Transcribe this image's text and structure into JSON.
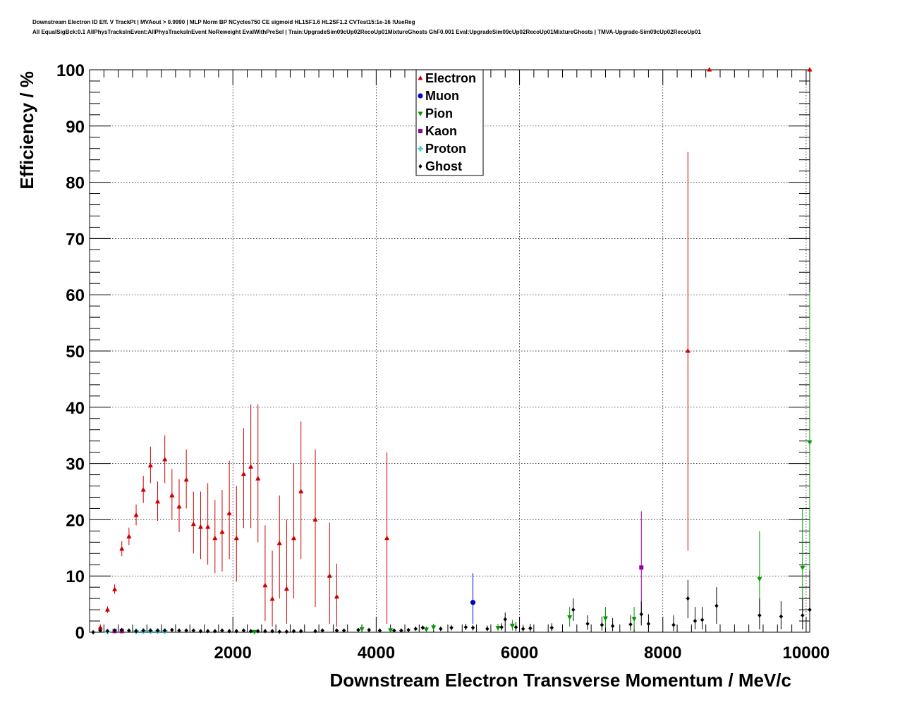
{
  "chart_data": {
    "type": "scatter",
    "title_line1": "Downstream Electron ID Eff. V TrackPt | MVAout > 0.9990 | MLP Norm BP NCycles750 CE sigmoid HL1SF1.6 HL2SF1.2 CVTest15:1e-16 !UseReg",
    "title_line2": "All EqualSigBck:0.1 AllPhysTracksInEvent:AllPhysTracksInEvent NoReweight EvalWithPreSel | Train:UpgradeSim09cUp02RecoUp01MixtureGhosts GhF0.001 Eval:UpgradeSim09cUp02RecoUp01MixtureGhosts | TMVA-Upgrade-Sim09cUp02RecoUp01",
    "xlabel": "Downstream Electron Transverse Momentum / MeV/c",
    "ylabel": "Efficiency / %",
    "xlim": [
      0,
      10050
    ],
    "ylim": [
      0,
      100
    ],
    "xticks": [
      2000,
      4000,
      6000,
      8000,
      10000
    ],
    "xtick_labels": [
      "2000",
      "4000",
      "6000",
      "8000",
      "10000"
    ],
    "yticks": [
      0,
      10,
      20,
      30,
      40,
      50,
      60,
      70,
      80,
      90,
      100
    ],
    "ytick_labels": [
      "0",
      "10",
      "20",
      "30",
      "40",
      "50",
      "60",
      "70",
      "80",
      "90",
      "100"
    ],
    "grid": true,
    "legend_position": "top-center",
    "series": [
      {
        "name": "Electron",
        "color": "#cc0000",
        "marker": "triangle-up",
        "points": [
          {
            "x": 150,
            "y": 0.8,
            "lo": 0.3,
            "hi": 1.4
          },
          {
            "x": 250,
            "y": 4.0,
            "lo": 3.4,
            "hi": 4.6
          },
          {
            "x": 350,
            "y": 7.6,
            "lo": 6.8,
            "hi": 8.5
          },
          {
            "x": 450,
            "y": 14.8,
            "lo": 13.5,
            "hi": 16.2
          },
          {
            "x": 550,
            "y": 17.0,
            "lo": 15.5,
            "hi": 18.6
          },
          {
            "x": 650,
            "y": 20.8,
            "lo": 19.0,
            "hi": 22.7
          },
          {
            "x": 750,
            "y": 25.3,
            "lo": 23.0,
            "hi": 27.8
          },
          {
            "x": 850,
            "y": 29.6,
            "lo": 26.5,
            "hi": 33.0
          },
          {
            "x": 950,
            "y": 23.2,
            "lo": 19.8,
            "hi": 26.8
          },
          {
            "x": 1050,
            "y": 30.7,
            "lo": 26.5,
            "hi": 35.0
          },
          {
            "x": 1150,
            "y": 24.3,
            "lo": 20.0,
            "hi": 29.0
          },
          {
            "x": 1250,
            "y": 22.3,
            "lo": 17.8,
            "hi": 27.2
          },
          {
            "x": 1350,
            "y": 27.1,
            "lo": 22.0,
            "hi": 32.5
          },
          {
            "x": 1450,
            "y": 19.2,
            "lo": 14.0,
            "hi": 25.0
          },
          {
            "x": 1550,
            "y": 18.7,
            "lo": 13.0,
            "hi": 25.0
          },
          {
            "x": 1650,
            "y": 18.7,
            "lo": 12.0,
            "hi": 26.5
          },
          {
            "x": 1750,
            "y": 16.7,
            "lo": 10.5,
            "hi": 23.5
          },
          {
            "x": 1850,
            "y": 17.8,
            "lo": 10.8,
            "hi": 25.3
          },
          {
            "x": 1950,
            "y": 21.1,
            "lo": 13.0,
            "hi": 30.5
          },
          {
            "x": 2050,
            "y": 16.7,
            "lo": 9.0,
            "hi": 26.0
          },
          {
            "x": 2150,
            "y": 28.1,
            "lo": 18.5,
            "hi": 36.3
          },
          {
            "x": 2250,
            "y": 29.4,
            "lo": 18.5,
            "hi": 40.5
          },
          {
            "x": 2350,
            "y": 27.3,
            "lo": 16.0,
            "hi": 40.5
          },
          {
            "x": 2450,
            "y": 8.3,
            "lo": 2.0,
            "hi": 19.0
          },
          {
            "x": 2550,
            "y": 5.9,
            "lo": 1.0,
            "hi": 14.5
          },
          {
            "x": 2650,
            "y": 15.8,
            "lo": 6.0,
            "hi": 24.3
          },
          {
            "x": 2750,
            "y": 7.7,
            "lo": 1.5,
            "hi": 20.0
          },
          {
            "x": 2850,
            "y": 16.7,
            "lo": 6.0,
            "hi": 30.0
          },
          {
            "x": 2950,
            "y": 25.0,
            "lo": 13.0,
            "hi": 37.5
          },
          {
            "x": 3150,
            "y": 20.0,
            "lo": 4.5,
            "hi": 32.5
          },
          {
            "x": 3350,
            "y": 10.0,
            "lo": 1.5,
            "hi": 19.5
          },
          {
            "x": 3450,
            "y": 6.3,
            "lo": 1.0,
            "hi": 12.2
          },
          {
            "x": 4150,
            "y": 16.7,
            "lo": 1.5,
            "hi": 32.0
          },
          {
            "x": 8350,
            "y": 50.0,
            "lo": 14.5,
            "hi": 85.4
          },
          {
            "x": 8650,
            "y": 100.0,
            "lo": 100.0,
            "hi": 100.0
          },
          {
            "x": 10050,
            "y": 100.0,
            "lo": 100.0,
            "hi": 100.0
          }
        ]
      },
      {
        "name": "Muon",
        "color": "#0000cc",
        "marker": "circle",
        "points": [
          {
            "x": 5350,
            "y": 5.3,
            "lo": 1.5,
            "hi": 10.5
          }
        ]
      },
      {
        "name": "Pion",
        "color": "#009900",
        "marker": "triangle-down",
        "points": [
          {
            "x": 2300,
            "y": 0.1,
            "lo": 0.0,
            "hi": 0.4
          },
          {
            "x": 3800,
            "y": 0.6,
            "lo": 0.2,
            "hi": 1.0
          },
          {
            "x": 4200,
            "y": 0.4,
            "lo": 0.1,
            "hi": 0.8
          },
          {
            "x": 4700,
            "y": 0.5,
            "lo": 0.1,
            "hi": 1.0
          },
          {
            "x": 4800,
            "y": 0.9,
            "lo": 0.3,
            "hi": 1.5
          },
          {
            "x": 5700,
            "y": 0.8,
            "lo": 0.2,
            "hi": 1.5
          },
          {
            "x": 5900,
            "y": 1.2,
            "lo": 0.3,
            "hi": 2.2
          },
          {
            "x": 6700,
            "y": 2.7,
            "lo": 1.0,
            "hi": 4.5
          },
          {
            "x": 7200,
            "y": 2.5,
            "lo": 0.8,
            "hi": 4.5
          },
          {
            "x": 7600,
            "y": 2.4,
            "lo": 0.5,
            "hi": 4.5
          },
          {
            "x": 9350,
            "y": 9.5,
            "lo": 2.5,
            "hi": 18.0
          },
          {
            "x": 9950,
            "y": 11.5,
            "lo": 3.5,
            "hi": 22.0
          },
          {
            "x": 10050,
            "y": 33.8,
            "lo": 11.0,
            "hi": 60.5
          }
        ]
      },
      {
        "name": "Kaon",
        "color": "#990099",
        "marker": "square",
        "points": [
          {
            "x": 350,
            "y": 0.2,
            "lo": 0.0,
            "hi": 0.5
          },
          {
            "x": 450,
            "y": 0.2,
            "lo": 0.0,
            "hi": 0.5
          },
          {
            "x": 7700,
            "y": 11.5,
            "lo": 3.0,
            "hi": 21.5
          }
        ]
      },
      {
        "name": "Proton",
        "color": "#44cccc",
        "marker": "cross",
        "points": [
          {
            "x": 250,
            "y": 0.1,
            "lo": 0.0,
            "hi": 0.3
          },
          {
            "x": 650,
            "y": 0.2,
            "lo": 0.0,
            "hi": 0.4
          },
          {
            "x": 750,
            "y": 0.2,
            "lo": 0.0,
            "hi": 0.4
          },
          {
            "x": 850,
            "y": 0.2,
            "lo": 0.0,
            "hi": 0.4
          },
          {
            "x": 950,
            "y": 0.2,
            "lo": 0.0,
            "hi": 0.4
          },
          {
            "x": 1050,
            "y": 0.2,
            "lo": 0.0,
            "hi": 0.4
          }
        ]
      },
      {
        "name": "Ghost",
        "color": "#000000",
        "marker": "diamond",
        "points": [
          {
            "x": 50,
            "y": 0.0,
            "lo": 0.0,
            "hi": 0.1
          },
          {
            "x": 150,
            "y": 0.3,
            "lo": 0.2,
            "hi": 0.4
          },
          {
            "x": 250,
            "y": 0.2,
            "lo": 0.1,
            "hi": 0.3
          },
          {
            "x": 350,
            "y": 0.3,
            "lo": 0.2,
            "hi": 0.4
          },
          {
            "x": 450,
            "y": 0.4,
            "lo": 0.3,
            "hi": 0.5
          },
          {
            "x": 550,
            "y": 0.3,
            "lo": 0.2,
            "hi": 0.4
          },
          {
            "x": 650,
            "y": 0.2,
            "lo": 0.1,
            "hi": 0.3
          },
          {
            "x": 750,
            "y": 0.3,
            "lo": 0.2,
            "hi": 0.4
          },
          {
            "x": 850,
            "y": 0.3,
            "lo": 0.2,
            "hi": 0.4
          },
          {
            "x": 950,
            "y": 0.3,
            "lo": 0.2,
            "hi": 0.4
          },
          {
            "x": 1050,
            "y": 0.3,
            "lo": 0.2,
            "hi": 0.4
          },
          {
            "x": 1150,
            "y": 0.4,
            "lo": 0.3,
            "hi": 0.5
          },
          {
            "x": 1250,
            "y": 0.3,
            "lo": 0.2,
            "hi": 0.4
          },
          {
            "x": 1350,
            "y": 0.3,
            "lo": 0.2,
            "hi": 0.4
          },
          {
            "x": 1450,
            "y": 0.3,
            "lo": 0.2,
            "hi": 0.4
          },
          {
            "x": 1550,
            "y": 0.2,
            "lo": 0.1,
            "hi": 0.3
          },
          {
            "x": 1650,
            "y": 0.2,
            "lo": 0.1,
            "hi": 0.3
          },
          {
            "x": 1750,
            "y": 0.2,
            "lo": 0.1,
            "hi": 0.3
          },
          {
            "x": 1850,
            "y": 0.3,
            "lo": 0.2,
            "hi": 0.4
          },
          {
            "x": 1950,
            "y": 0.2,
            "lo": 0.1,
            "hi": 0.3
          },
          {
            "x": 2050,
            "y": 0.2,
            "lo": 0.1,
            "hi": 0.3
          },
          {
            "x": 2150,
            "y": 0.3,
            "lo": 0.2,
            "hi": 0.4
          },
          {
            "x": 2250,
            "y": 0.2,
            "lo": 0.1,
            "hi": 0.3
          },
          {
            "x": 2350,
            "y": 0.2,
            "lo": 0.1,
            "hi": 0.3
          },
          {
            "x": 2450,
            "y": 0.2,
            "lo": 0.1,
            "hi": 0.3
          },
          {
            "x": 2550,
            "y": 0.2,
            "lo": 0.1,
            "hi": 0.3
          },
          {
            "x": 2650,
            "y": 0.1,
            "lo": 0.0,
            "hi": 0.2
          },
          {
            "x": 2750,
            "y": 0.1,
            "lo": 0.0,
            "hi": 0.2
          },
          {
            "x": 2850,
            "y": 0.2,
            "lo": 0.1,
            "hi": 0.3
          },
          {
            "x": 2950,
            "y": 0.2,
            "lo": 0.1,
            "hi": 0.3
          },
          {
            "x": 3150,
            "y": 0.2,
            "lo": 0.1,
            "hi": 0.3
          },
          {
            "x": 3250,
            "y": 0.3,
            "lo": 0.2,
            "hi": 0.4
          },
          {
            "x": 3450,
            "y": 0.3,
            "lo": 0.2,
            "hi": 0.4
          },
          {
            "x": 3550,
            "y": 0.3,
            "lo": 0.2,
            "hi": 0.4
          },
          {
            "x": 3750,
            "y": 0.4,
            "lo": 0.2,
            "hi": 0.6
          },
          {
            "x": 3900,
            "y": 0.4,
            "lo": 0.2,
            "hi": 0.6
          },
          {
            "x": 4050,
            "y": 0.3,
            "lo": 0.1,
            "hi": 0.5
          },
          {
            "x": 4250,
            "y": 0.3,
            "lo": 0.1,
            "hi": 0.5
          },
          {
            "x": 4350,
            "y": 0.3,
            "lo": 0.1,
            "hi": 0.5
          },
          {
            "x": 4450,
            "y": 0.4,
            "lo": 0.2,
            "hi": 0.7
          },
          {
            "x": 4550,
            "y": 0.6,
            "lo": 0.3,
            "hi": 1.0
          },
          {
            "x": 4650,
            "y": 0.8,
            "lo": 0.4,
            "hi": 1.2
          },
          {
            "x": 4900,
            "y": 0.6,
            "lo": 0.2,
            "hi": 1.0
          },
          {
            "x": 5050,
            "y": 0.8,
            "lo": 0.3,
            "hi": 1.3
          },
          {
            "x": 5250,
            "y": 0.9,
            "lo": 0.4,
            "hi": 1.5
          },
          {
            "x": 5350,
            "y": 0.8,
            "lo": 0.3,
            "hi": 1.3
          },
          {
            "x": 5550,
            "y": 0.6,
            "lo": 0.2,
            "hi": 1.2
          },
          {
            "x": 5750,
            "y": 0.9,
            "lo": 0.3,
            "hi": 1.6
          },
          {
            "x": 5800,
            "y": 2.3,
            "lo": 1.2,
            "hi": 3.5
          },
          {
            "x": 5950,
            "y": 0.9,
            "lo": 0.2,
            "hi": 1.8
          },
          {
            "x": 6050,
            "y": 0.6,
            "lo": 0.1,
            "hi": 1.3
          },
          {
            "x": 6150,
            "y": 0.7,
            "lo": 0.1,
            "hi": 1.5
          },
          {
            "x": 6450,
            "y": 0.8,
            "lo": 0.2,
            "hi": 1.6
          },
          {
            "x": 6750,
            "y": 4.0,
            "lo": 2.0,
            "hi": 6.0
          },
          {
            "x": 6950,
            "y": 1.5,
            "lo": 0.4,
            "hi": 3.0
          },
          {
            "x": 7150,
            "y": 1.3,
            "lo": 0.3,
            "hi": 2.8
          },
          {
            "x": 7300,
            "y": 1.1,
            "lo": 0.2,
            "hi": 2.5
          },
          {
            "x": 7550,
            "y": 1.4,
            "lo": 0.3,
            "hi": 3.0
          },
          {
            "x": 7700,
            "y": 3.2,
            "lo": 1.2,
            "hi": 5.5
          },
          {
            "x": 7800,
            "y": 1.5,
            "lo": 0.3,
            "hi": 3.2
          },
          {
            "x": 8150,
            "y": 1.3,
            "lo": 0.2,
            "hi": 3.0
          },
          {
            "x": 8350,
            "y": 6.0,
            "lo": 2.5,
            "hi": 9.3
          },
          {
            "x": 8450,
            "y": 2.0,
            "lo": 0.5,
            "hi": 4.5
          },
          {
            "x": 8550,
            "y": 2.2,
            "lo": 0.5,
            "hi": 4.5
          },
          {
            "x": 8750,
            "y": 4.7,
            "lo": 1.5,
            "hi": 8.0
          },
          {
            "x": 9350,
            "y": 3.0,
            "lo": 0.5,
            "hi": 6.0
          },
          {
            "x": 9650,
            "y": 2.8,
            "lo": 0.5,
            "hi": 5.5
          },
          {
            "x": 9950,
            "y": 3.0,
            "lo": 0.5,
            "hi": 6.0
          },
          {
            "x": 10050,
            "y": 4.0,
            "lo": 1.0,
            "hi": 7.5
          }
        ]
      }
    ]
  }
}
